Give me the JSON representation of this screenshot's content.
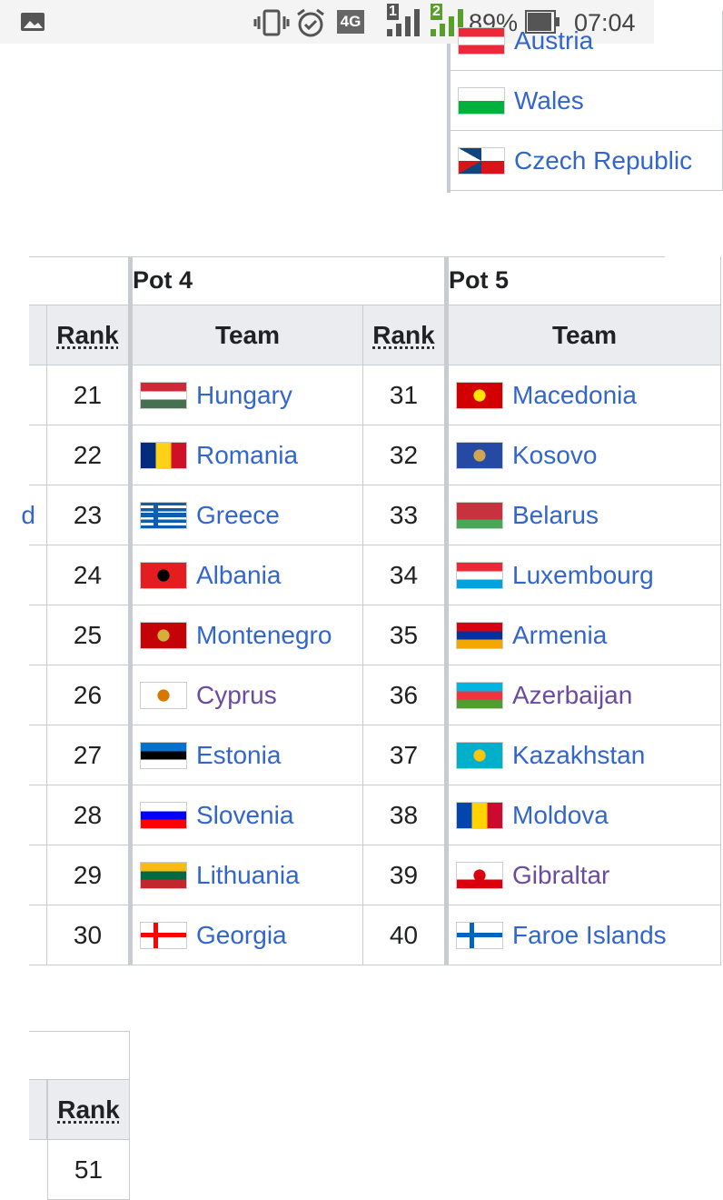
{
  "status_bar": {
    "network": "4G",
    "sim_slots": [
      "1",
      "2"
    ],
    "battery": "89%",
    "time": "07:04"
  },
  "top_table": {
    "rows": [
      "Austria",
      "Wales",
      "Czech Republic"
    ]
  },
  "main_table": {
    "pot_headers": [
      "Pot 4",
      "Pot 5"
    ],
    "column_headers": [
      "Rank",
      "Team",
      "Rank",
      "Team"
    ],
    "rows": [
      {
        "rank_a": "21",
        "team_a": "Hungary",
        "rank_b": "31",
        "team_b": "Macedonia"
      },
      {
        "rank_a": "22",
        "team_a": "Romania",
        "rank_b": "32",
        "team_b": "Kosovo"
      },
      {
        "left": "d",
        "rank_a": "23",
        "team_a": "Greece",
        "rank_b": "33",
        "team_b": "Belarus"
      },
      {
        "rank_a": "24",
        "team_a": "Albania",
        "rank_b": "34",
        "team_b": "Luxembourg"
      },
      {
        "rank_a": "25",
        "team_a": "Montenegro",
        "rank_b": "35",
        "team_b": "Armenia"
      },
      {
        "rank_a": "26",
        "team_a": "Cyprus",
        "rank_b": "36",
        "team_b": "Azerbaijan"
      },
      {
        "rank_a": "27",
        "team_a": "Estonia",
        "rank_b": "37",
        "team_b": "Kazakhstan"
      },
      {
        "rank_a": "28",
        "team_a": "Slovenia",
        "rank_b": "38",
        "team_b": "Moldova"
      },
      {
        "rank_a": "29",
        "team_a": "Lithuania",
        "rank_b": "39",
        "team_b": "Gibraltar"
      },
      {
        "rank_a": "30",
        "team_a": "Georgia",
        "rank_b": "40",
        "team_b": "Faroe Islands"
      }
    ]
  },
  "bottom_table": {
    "header": "Rank",
    "rows": [
      "51"
    ]
  }
}
